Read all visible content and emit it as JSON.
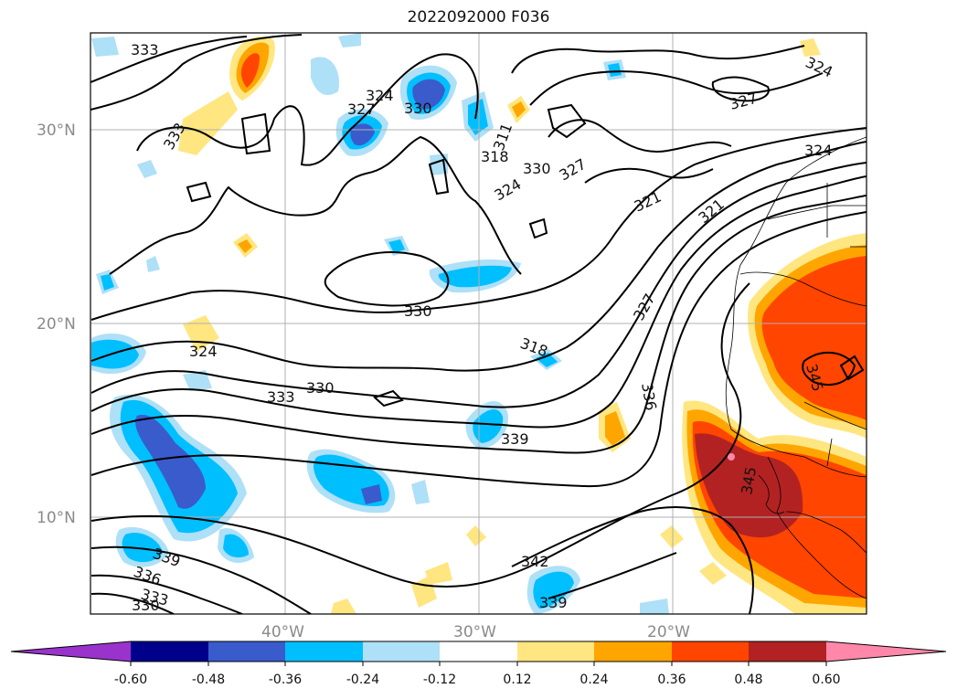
{
  "title": "2022092000 F036",
  "map": {
    "lat_labels": [
      "30°N",
      "20°N",
      "10°N"
    ],
    "lon_labels": [
      "40°W",
      "30°W",
      "20°W"
    ],
    "contour_labels": [
      "333",
      "333",
      "324",
      "327",
      "330",
      "318",
      "311",
      "330",
      "327",
      "324",
      "321",
      "321",
      "324",
      "327",
      "324",
      "330",
      "324",
      "333",
      "330",
      "318",
      "327",
      "336",
      "345",
      "339",
      "339",
      "336",
      "333",
      "330",
      "342",
      "339",
      "345"
    ]
  },
  "colorbar": {
    "levels": [
      "-0.60",
      "-0.48",
      "-0.36",
      "-0.24",
      "-0.12",
      "0.12",
      "0.24",
      "0.36",
      "0.48",
      "0.60"
    ],
    "colors": [
      "#9933cc",
      "#00008b",
      "#3a5bcc",
      "#00bfff",
      "#aee0f7",
      "#ffffff",
      "#ffe680",
      "#ffa500",
      "#ff4500",
      "#b22222",
      "#ff88aa"
    ]
  },
  "legend_colors": {
    "pos_low": "#ffe680",
    "pos_mid": "#ffa500",
    "pos_high": "#ff4500",
    "pos_max": "#b22222",
    "neg_low": "#aee0f7",
    "neg_mid": "#00bfff",
    "neg_high": "#3a5bcc",
    "neg_max": "#00008b"
  }
}
